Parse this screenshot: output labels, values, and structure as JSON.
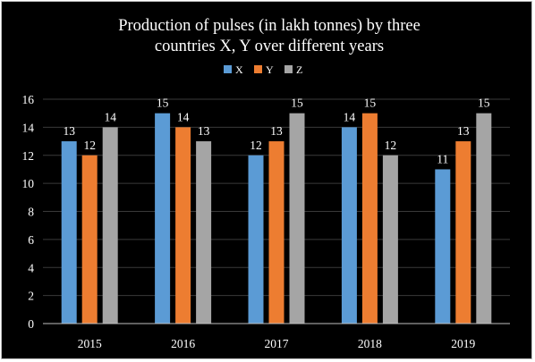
{
  "chart_data": {
    "type": "bar",
    "title": "Production of pulses (in lakh tonnes) by three countries X, Y over different years",
    "title_lines": [
      "Production of pulses (in lakh tonnes) by three",
      "countries X, Y over different years"
    ],
    "categories": [
      "2015",
      "2016",
      "2017",
      "2018",
      "2019"
    ],
    "series": [
      {
        "name": "X",
        "color": "#5b9bd5",
        "values": [
          13,
          15,
          12,
          14,
          11
        ]
      },
      {
        "name": "Y",
        "color": "#ed7d31",
        "values": [
          12,
          14,
          13,
          15,
          13
        ]
      },
      {
        "name": "Z",
        "color": "#a5a5a5",
        "values": [
          14,
          13,
          15,
          12,
          15
        ]
      }
    ],
    "ylim": [
      0,
      16
    ],
    "yticks": [
      "0",
      "2",
      "4",
      "6",
      "8",
      "10",
      "12",
      "14",
      "16"
    ],
    "grid": true,
    "legend_position": "top",
    "data_labels": true,
    "background": "#000000"
  }
}
